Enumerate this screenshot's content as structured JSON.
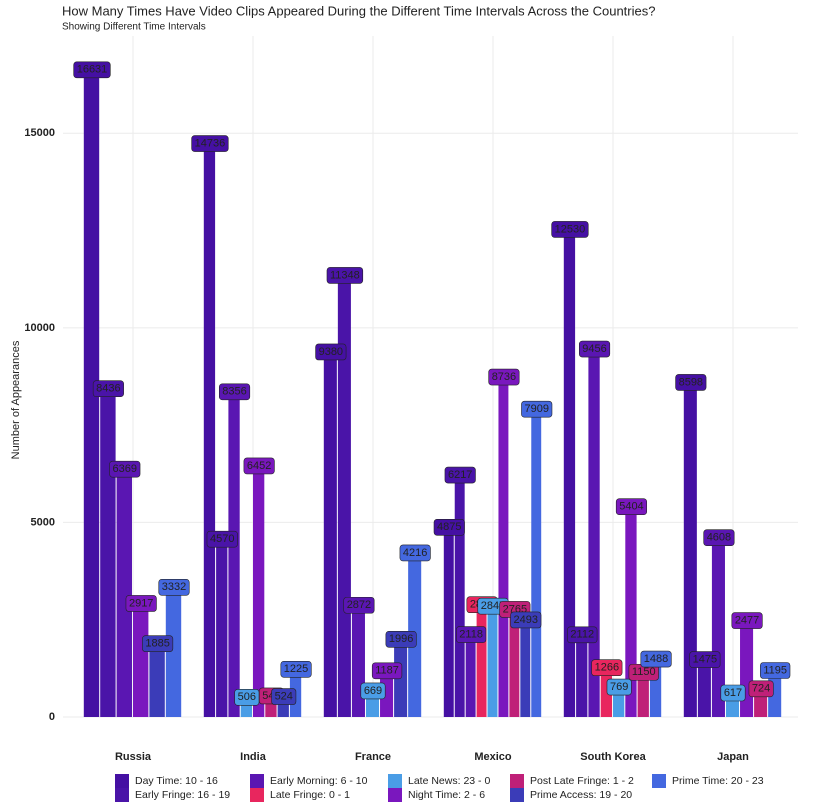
{
  "chart_data": {
    "type": "bar",
    "title": "How Many Times Have Video Clips Appeared During the Different Time Intervals Across the Countries?",
    "subtitle": "Showing Different Time Intervals",
    "y_label": "Number of Appearances",
    "categories": [
      "Russia",
      "India",
      "France",
      "Mexico",
      "South Korea",
      "Japan"
    ],
    "series": [
      {
        "name": "Day Time: 10 - 16",
        "color": "#4510a3",
        "values": [
          16631,
          14736,
          9380,
          4875,
          12530,
          8598
        ]
      },
      {
        "name": "Early Fringe: 16 - 19",
        "color": "#4a14a8",
        "values": [
          8436,
          4570,
          11348,
          6217,
          2112,
          1475
        ]
      },
      {
        "name": "Early Morning: 6 - 10",
        "color": "#5a16b2",
        "values": [
          6369,
          8356,
          2872,
          2118,
          9456,
          4608
        ]
      },
      {
        "name": "Late Fringe: 0 - 1",
        "color": "#e8265e",
        "values": [
          null,
          null,
          null,
          2885,
          1266,
          null
        ]
      },
      {
        "name": "Late News: 23 - 0",
        "color": "#4a9de6",
        "values": [
          null,
          506,
          669,
          2847,
          769,
          617
        ]
      },
      {
        "name": "Night Time: 2 - 6",
        "color": "#7a17be",
        "values": [
          2917,
          6452,
          1187,
          8736,
          5404,
          2477
        ]
      },
      {
        "name": "Post Late Fringe: 1 - 2",
        "color": "#bf2078",
        "values": [
          null,
          540,
          null,
          2765,
          1150,
          724
        ]
      },
      {
        "name": "Prime Access: 19 - 20",
        "color": "#3b3cb8",
        "values": [
          1885,
          524,
          1996,
          2493,
          null,
          null
        ]
      },
      {
        "name": "Prime Time: 20 - 23",
        "color": "#4468e0",
        "values": [
          3332,
          1225,
          4216,
          7909,
          1488,
          1195
        ]
      }
    ],
    "ylim": [
      0,
      17500
    ],
    "yticks": [
      0,
      5000,
      10000,
      15000
    ],
    "grid": true
  }
}
